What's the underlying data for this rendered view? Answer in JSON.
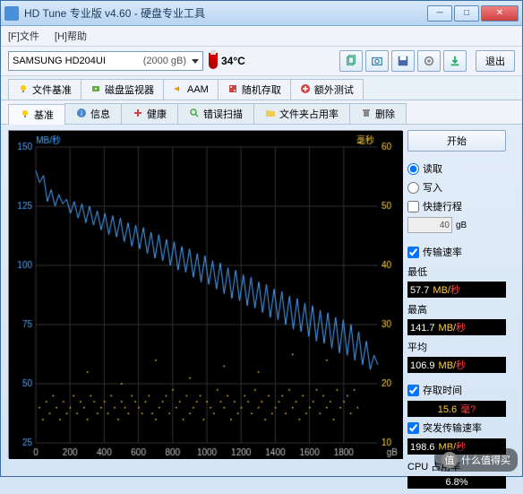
{
  "window": {
    "title": "HD Tune 专业版 v4.60 - 硬盘专业工具"
  },
  "menu": {
    "file": "[F]文件",
    "help": "[H]帮助"
  },
  "drive": {
    "model": "SAMSUNG HD204UI",
    "size": "(2000 gB)",
    "temp": "34°C"
  },
  "toolbar": {
    "exit": "退出"
  },
  "tabs_upper": [
    {
      "icon": "bulb",
      "label": "文件基准"
    },
    {
      "icon": "disk",
      "label": "磁盘监视器"
    },
    {
      "icon": "speaker",
      "label": "AAM"
    },
    {
      "icon": "dice",
      "label": "随机存取"
    },
    {
      "icon": "plus",
      "label": "额外测试"
    }
  ],
  "tabs_lower": [
    {
      "icon": "bulb",
      "label": "基准",
      "active": true
    },
    {
      "icon": "info",
      "label": "信息"
    },
    {
      "icon": "cross",
      "label": "健康"
    },
    {
      "icon": "scan",
      "label": "错误扫描"
    },
    {
      "icon": "folder",
      "label": "文件夹占用率"
    },
    {
      "icon": "trash",
      "label": "删除"
    }
  ],
  "chart": {
    "type": "line+scatter",
    "bg": "#000000",
    "grid_color": "#333333",
    "left_axis": {
      "label": "MB/秒",
      "color": "#4da6ff",
      "min": 25,
      "max": 150,
      "ticks": [
        25,
        50,
        75,
        100,
        125,
        150
      ]
    },
    "right_axis": {
      "label": "毫秒",
      "color": "#ffd040",
      "min": 10,
      "max": 60,
      "ticks": [
        10,
        20,
        30,
        40,
        50,
        60
      ]
    },
    "x_axis": {
      "label": "gB",
      "color": "#c0c0c0",
      "min": 0,
      "max": 2000,
      "ticks": [
        0,
        200,
        400,
        600,
        800,
        1000,
        1200,
        1400,
        1600,
        1800
      ]
    },
    "transfer_line": {
      "color": "#4da6ff",
      "width": 1,
      "data": [
        140,
        135,
        138,
        127,
        132,
        125,
        130,
        126,
        128,
        122,
        127,
        120,
        126,
        118,
        125,
        117,
        123,
        115,
        122,
        113,
        121,
        112,
        120,
        110,
        118,
        108,
        117,
        107,
        116,
        105,
        114,
        103,
        113,
        102,
        111,
        100,
        110,
        98,
        108,
        97,
        107,
        95,
        105,
        93,
        104,
        92,
        102,
        90,
        101,
        88,
        99,
        86,
        98,
        85,
        96,
        83,
        95,
        82,
        93,
        80,
        92,
        78,
        90,
        77,
        89,
        75,
        87,
        73,
        86,
        72,
        84,
        70,
        83,
        68,
        81,
        67,
        80,
        65,
        78,
        63,
        77,
        62,
        75,
        60,
        72,
        58,
        68,
        56,
        62,
        58
      ]
    },
    "access_scatter": {
      "color": "#ffd040",
      "size": 1.5,
      "data": [
        [
          20,
          16
        ],
        [
          40,
          14
        ],
        [
          60,
          17
        ],
        [
          80,
          15
        ],
        [
          100,
          18
        ],
        [
          120,
          16
        ],
        [
          140,
          14
        ],
        [
          160,
          17
        ],
        [
          180,
          15
        ],
        [
          200,
          16
        ],
        [
          220,
          18
        ],
        [
          240,
          15
        ],
        [
          260,
          17
        ],
        [
          280,
          16
        ],
        [
          300,
          14
        ],
        [
          320,
          18
        ],
        [
          340,
          17
        ],
        [
          360,
          15
        ],
        [
          380,
          16
        ],
        [
          400,
          17
        ],
        [
          420,
          15
        ],
        [
          440,
          18
        ],
        [
          460,
          16
        ],
        [
          480,
          14
        ],
        [
          500,
          17
        ],
        [
          520,
          16
        ],
        [
          540,
          15
        ],
        [
          560,
          18
        ],
        [
          580,
          17
        ],
        [
          600,
          16
        ],
        [
          620,
          15
        ],
        [
          640,
          17
        ],
        [
          660,
          18
        ],
        [
          680,
          15
        ],
        [
          700,
          14
        ],
        [
          720,
          16
        ],
        [
          740,
          17
        ],
        [
          760,
          18
        ],
        [
          780,
          15
        ],
        [
          800,
          19
        ],
        [
          820,
          16
        ],
        [
          840,
          17
        ],
        [
          860,
          14
        ],
        [
          880,
          18
        ],
        [
          900,
          15
        ],
        [
          920,
          16
        ],
        [
          940,
          17
        ],
        [
          960,
          18
        ],
        [
          980,
          14
        ],
        [
          1000,
          17
        ],
        [
          1020,
          16
        ],
        [
          1040,
          15
        ],
        [
          1060,
          19
        ],
        [
          1080,
          17
        ],
        [
          1100,
          16
        ],
        [
          1120,
          18
        ],
        [
          1140,
          14
        ],
        [
          1160,
          17
        ],
        [
          1180,
          15
        ],
        [
          1200,
          16
        ],
        [
          1220,
          18
        ],
        [
          1240,
          17
        ],
        [
          1260,
          15
        ],
        [
          1280,
          19
        ],
        [
          1300,
          16
        ],
        [
          1320,
          17
        ],
        [
          1340,
          14
        ],
        [
          1360,
          18
        ],
        [
          1380,
          15
        ],
        [
          1400,
          16
        ],
        [
          1420,
          17
        ],
        [
          1440,
          18
        ],
        [
          1460,
          15
        ],
        [
          1480,
          19
        ],
        [
          1500,
          16
        ],
        [
          1520,
          17
        ],
        [
          1540,
          14
        ],
        [
          1560,
          18
        ],
        [
          1580,
          15
        ],
        [
          1600,
          16
        ],
        [
          1620,
          17
        ],
        [
          1640,
          19
        ],
        [
          1660,
          15
        ],
        [
          1680,
          18
        ],
        [
          1700,
          16
        ],
        [
          1720,
          17
        ],
        [
          1740,
          14
        ],
        [
          1760,
          19
        ],
        [
          1780,
          16
        ],
        [
          1800,
          17
        ],
        [
          1820,
          18
        ],
        [
          1840,
          15
        ],
        [
          1860,
          19
        ],
        [
          1880,
          16
        ],
        [
          300,
          22
        ],
        [
          700,
          24
        ],
        [
          1100,
          23
        ],
        [
          1500,
          25
        ],
        [
          500,
          20
        ],
        [
          900,
          21
        ],
        [
          1300,
          22
        ],
        [
          1700,
          24
        ]
      ]
    }
  },
  "side": {
    "start": "开始",
    "read": "读取",
    "write": "写入",
    "shortstroke": "快捷行程",
    "stroke_val": "40",
    "stroke_unit": "gB",
    "transfer_chk": "传输速率",
    "min_lbl": "最低",
    "min_val": "57.7",
    "min_unit": "MB/秒",
    "max_lbl": "最高",
    "max_val": "141.7",
    "max_unit": "MB/秒",
    "avg_lbl": "平均",
    "avg_val": "106.9",
    "avg_unit": "MB/秒",
    "access_chk": "存取时间",
    "access_val": "15.6",
    "access_unit": "毫?",
    "burst_chk": "突发传输速率",
    "burst_val": "198.6",
    "burst_unit": "MB/秒",
    "cpu_lbl": "CPU 占用率",
    "cpu_val": "6.8%"
  },
  "watermark": "什么值得买"
}
